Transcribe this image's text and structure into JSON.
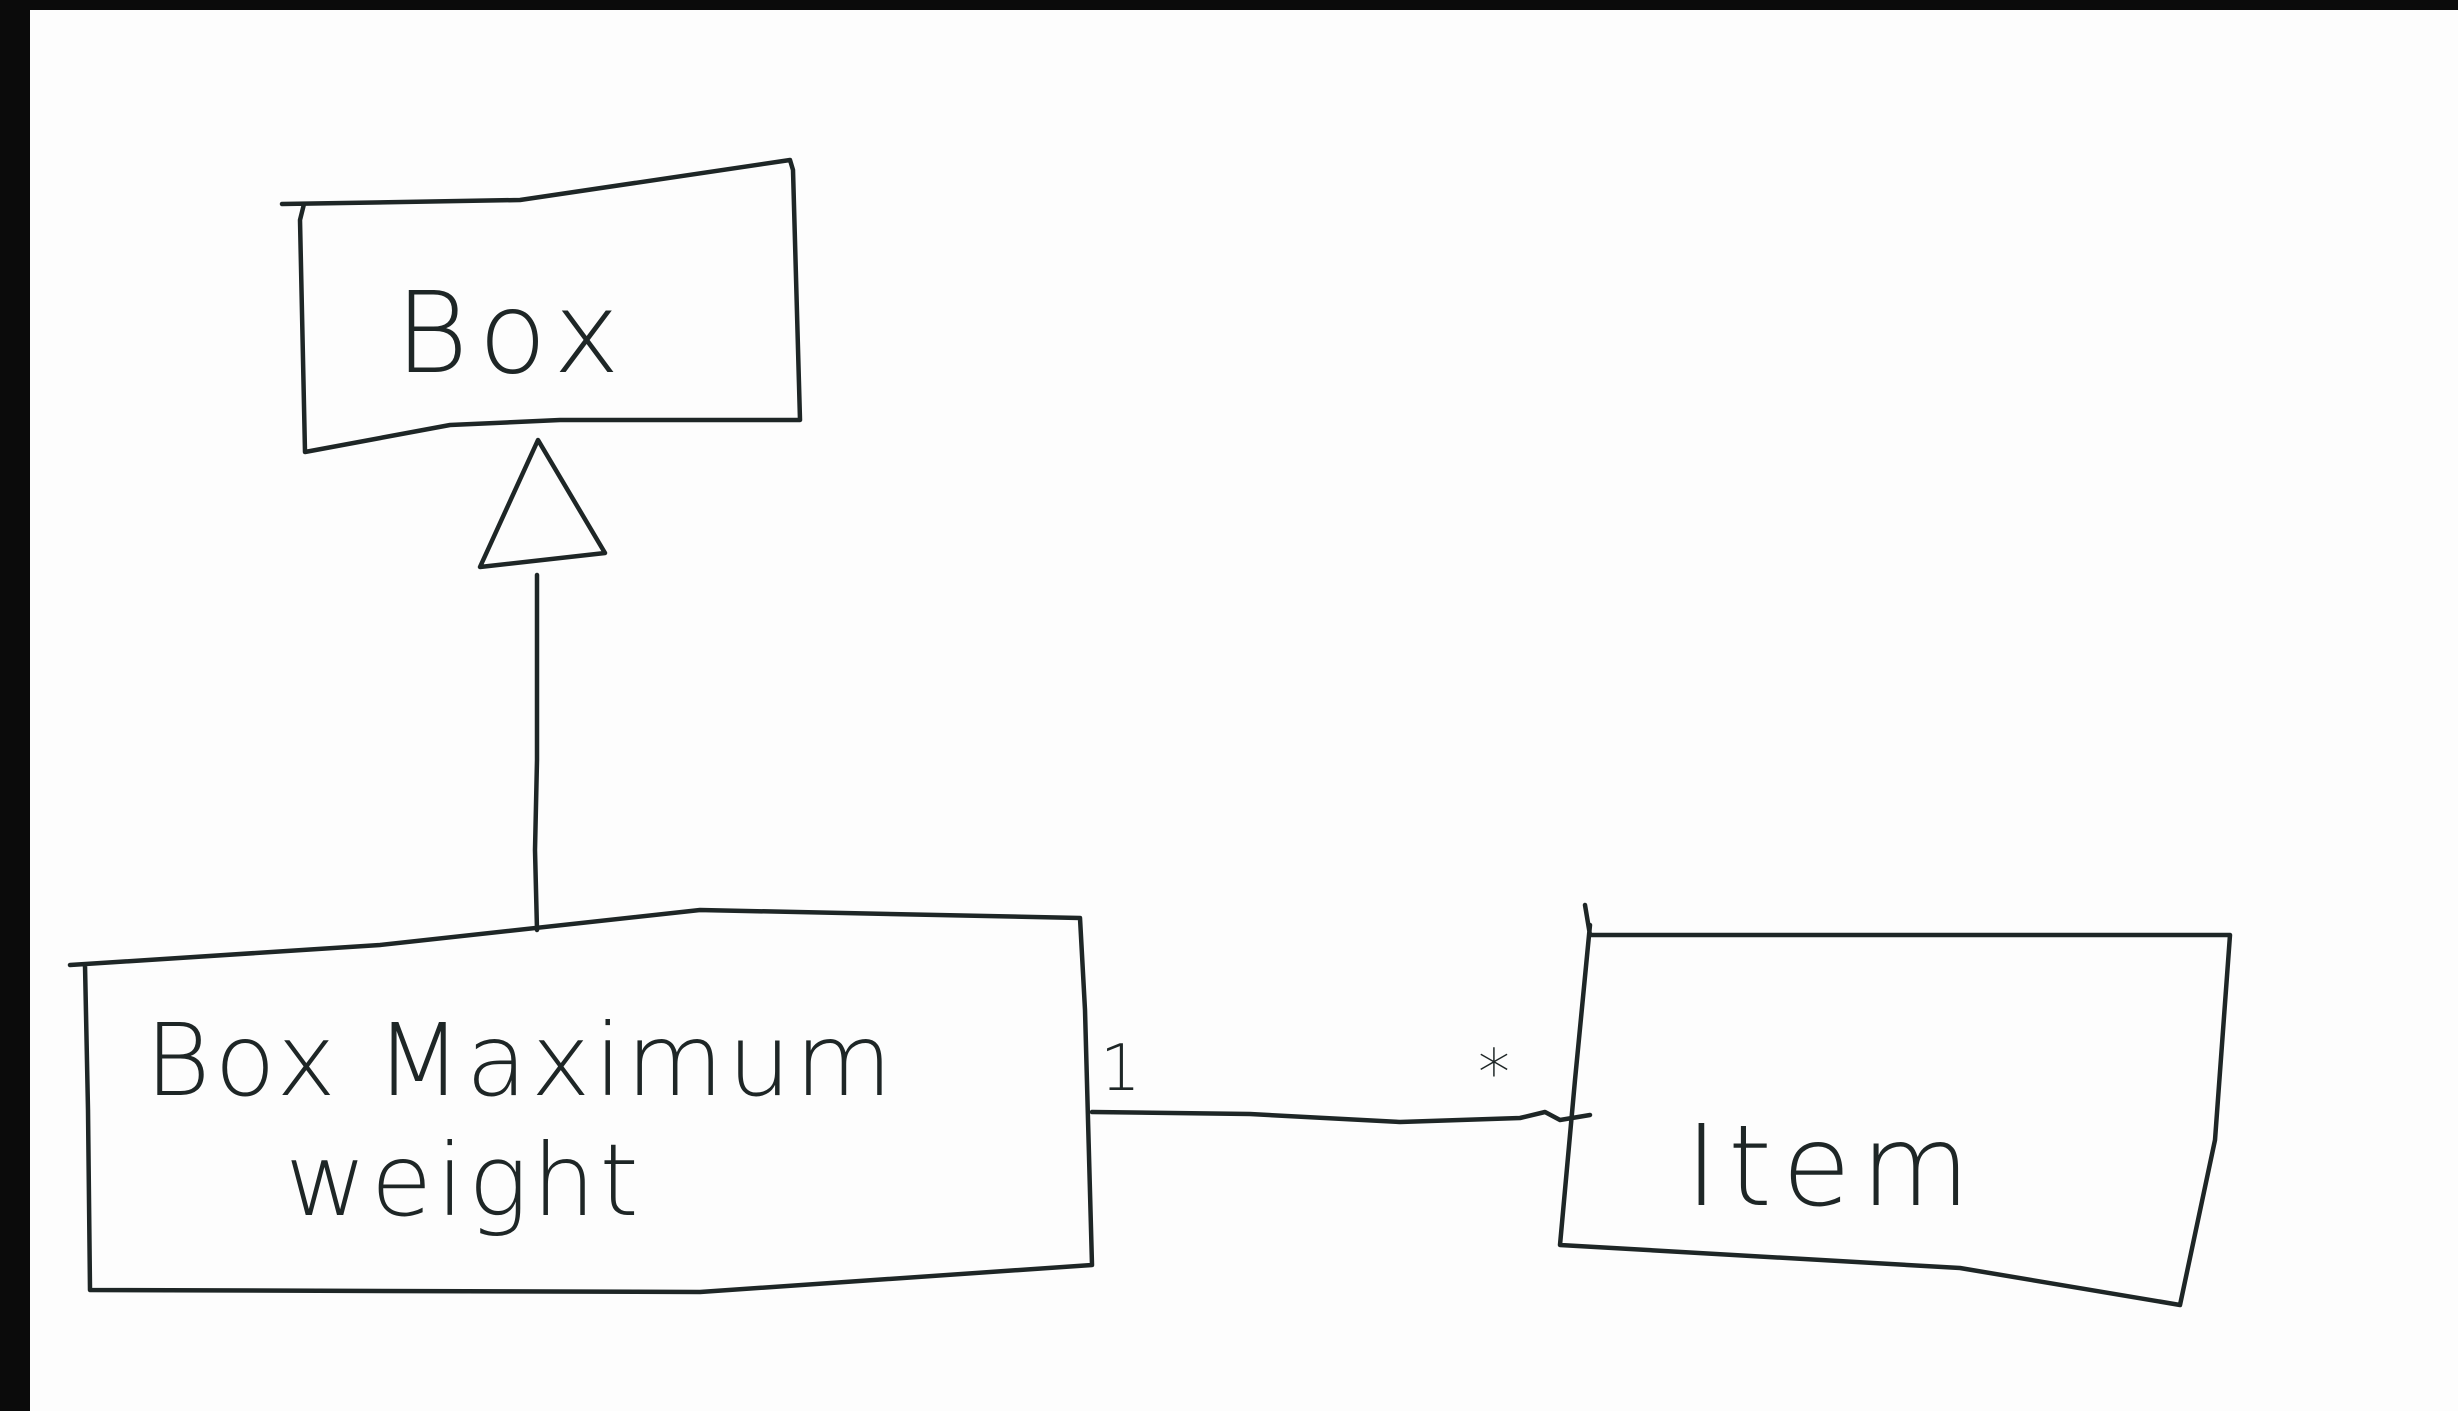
{
  "diagram": {
    "type": "uml-class-diagram",
    "classes": [
      {
        "id": "box",
        "name": "Box"
      },
      {
        "id": "box-maximum-weight",
        "name_line1": "Box Maximum",
        "name_line2": "weight"
      },
      {
        "id": "item",
        "name": "Item"
      }
    ],
    "relationships": [
      {
        "type": "generalization",
        "from": "box-maximum-weight",
        "to": "box"
      },
      {
        "type": "association",
        "from": "box-maximum-weight",
        "to": "item",
        "source_multiplicity": "1",
        "target_multiplicity": "*"
      }
    ],
    "colors": {
      "ink": "#1e2626",
      "paper": "#fdfdfd",
      "edge": "#0b0b0b"
    }
  }
}
